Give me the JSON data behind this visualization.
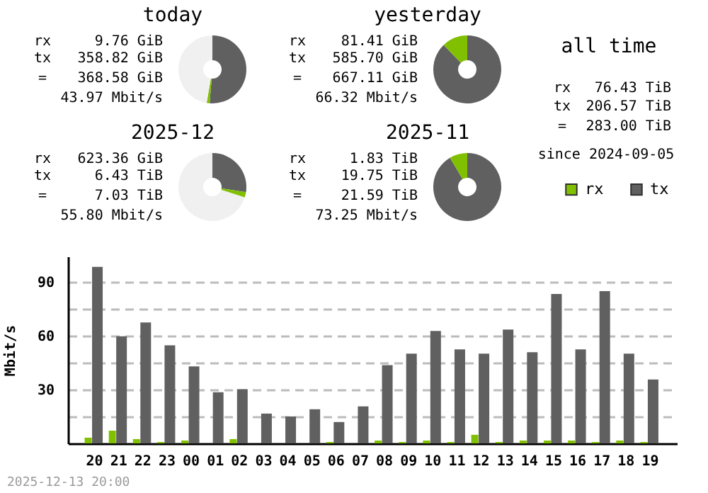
{
  "chart_data": [
    {
      "type": "donut",
      "title": "today",
      "categories": [
        null,
        null,
        null
      ],
      "values": [
        51.3,
        1.4,
        47.3
      ],
      "colors": [
        "#606060",
        "#80c000",
        "#f0f0f0"
      ],
      "annotations": [
        "rx 9.76 GiB",
        "tx 358.82 GiB",
        "= 368.58 GiB",
        "43.97 Mbit/s"
      ]
    },
    {
      "type": "donut",
      "title": "yesterday",
      "categories": [
        null,
        null
      ],
      "values": [
        87.8,
        12.2
      ],
      "colors": [
        "#606060",
        "#80c000"
      ],
      "annotations": [
        "rx 81.41 GiB",
        "tx 585.70 GiB",
        "= 667.11 GiB",
        "66.32 Mbit/s"
      ]
    },
    {
      "type": "donut",
      "title": "2025-12",
      "categories": [
        null,
        null,
        null
      ],
      "values": [
        27.4,
        2.6,
        70
      ],
      "colors": [
        "#606060",
        "#80c000",
        "#f0f0f0"
      ],
      "annotations": [
        "rx 623.36 GiB",
        "tx 6.43 TiB",
        "= 7.03 TiB",
        "55.80 Mbit/s"
      ]
    },
    {
      "type": "donut",
      "title": "2025-11",
      "categories": [
        null,
        null
      ],
      "values": [
        91.5,
        8.5
      ],
      "colors": [
        "#606060",
        "#80c000"
      ],
      "annotations": [
        "rx 1.83 TiB",
        "tx 19.75 TiB",
        "= 21.59 TiB",
        "73.25 Mbit/s"
      ]
    },
    {
      "type": "other",
      "title": "all time",
      "annotations": [
        "rx 76.43 TiB",
        "tx 206.57 TiB",
        "= 283.00 TiB",
        "since 2024-09-05"
      ]
    },
    {
      "type": "bar",
      "categories": [
        "20",
        "21",
        "22",
        "23",
        "00",
        "01",
        "02",
        "03",
        "04",
        "05",
        "06",
        "07",
        "08",
        "09",
        "10",
        "11",
        "12",
        "13",
        "14",
        "15",
        "16",
        "17",
        "18",
        "19"
      ],
      "series": [
        {
          "name": "rx",
          "color": "#80c000",
          "values": [
            3.2,
            7.1,
            2.4,
            0.8,
            1.6,
            0,
            2.4,
            0,
            0,
            0,
            0.8,
            0,
            1.6,
            0.8,
            1.6,
            0.8,
            4.8,
            0.8,
            1.6,
            1.6,
            1.6,
            0.8,
            1.6,
            0.8
          ]
        },
        {
          "name": "tx",
          "color": "#606060",
          "values": [
            98.2,
            59.6,
            67.3,
            54.6,
            42.8,
            28.5,
            30.1,
            16.6,
            15.0,
            19.0,
            11.9,
            20.6,
            43.5,
            49.9,
            62.5,
            52.3,
            49.9,
            63.3,
            50.7,
            83.1,
            52.3,
            84.7,
            49.9,
            35.6
          ]
        }
      ],
      "ylabel": "Mbit/s",
      "ylim": [
        0,
        104
      ],
      "yticks": [
        {
          "value": 15,
          "label": null
        },
        30,
        {
          "value": 45,
          "label": null
        },
        60,
        {
          "value": 75,
          "label": null
        },
        90
      ],
      "grid": "y",
      "legend": "top right",
      "annotations": [
        "2025-12-13 20:00"
      ]
    }
  ]
}
